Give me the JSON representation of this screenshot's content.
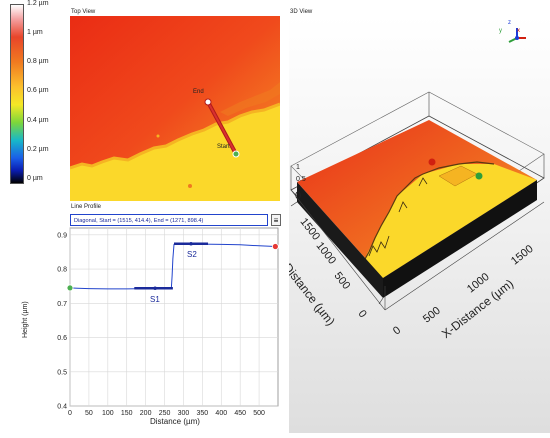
{
  "colorbar": {
    "ticks": [
      "1.2 µm",
      "1 µm",
      "0.8 µm",
      "0.6 µm",
      "0.4 µm",
      "0.2 µm",
      "0 µm"
    ]
  },
  "top_view": {
    "title": "Top View",
    "label_end": "End",
    "label_start": "Start"
  },
  "view_3d": {
    "title": "3D View",
    "axis_y_label": "Y-Distance (µm)",
    "axis_x_label": "X-Distance (µm)",
    "axis_z_ticks": [
      "0",
      "0.5",
      "1"
    ],
    "y_ticks": [
      "0",
      "500",
      "1000",
      "1500"
    ],
    "x_ticks": [
      "0",
      "500",
      "1000",
      "1500"
    ],
    "gizmo": {
      "z": "z",
      "x": "x",
      "y": "y"
    }
  },
  "line_profile": {
    "title": "Line Profile",
    "info": "Diagonal, Start = (1515, 414.4), End = (1271, 898.4)",
    "menu_glyph": "≡",
    "xlabel": "Distance (µm)",
    "ylabel": "Height (µm)",
    "s1_label": "S1",
    "s2_label": "S2"
  },
  "chart_data": {
    "type": "line",
    "xlabel": "Distance (µm)",
    "ylabel": "Height (µm)",
    "xlim": [
      0,
      550
    ],
    "ylim": [
      0.4,
      0.92
    ],
    "xticks": [
      0,
      50,
      100,
      150,
      200,
      250,
      300,
      350,
      400,
      450,
      500
    ],
    "yticks": [
      0.4,
      0.5,
      0.6,
      0.7,
      0.8,
      0.9
    ],
    "grid": true,
    "series": [
      {
        "x": [
          0,
          20,
          50,
          100,
          150,
          200,
          250,
          268,
          270,
          272,
          275,
          278,
          282,
          300,
          350,
          400,
          450,
          500,
          543
        ],
        "y": [
          0.745,
          0.744,
          0.743,
          0.742,
          0.742,
          0.743,
          0.744,
          0.745,
          0.78,
          0.83,
          0.872,
          0.875,
          0.874,
          0.874,
          0.873,
          0.872,
          0.871,
          0.868,
          0.866
        ],
        "color": "#2244cc"
      }
    ],
    "segments": [
      {
        "name": "S1",
        "x": [
          170,
          272
        ],
        "y": 0.744,
        "mid": 225
      },
      {
        "name": "S2",
        "x": [
          275,
          365
        ],
        "y": 0.874,
        "mid": 320
      }
    ],
    "markers": [
      {
        "x": 0,
        "y": 0.745,
        "color": "#4caf50"
      },
      {
        "x": 543,
        "y": 0.866,
        "color": "#e53935"
      }
    ]
  }
}
